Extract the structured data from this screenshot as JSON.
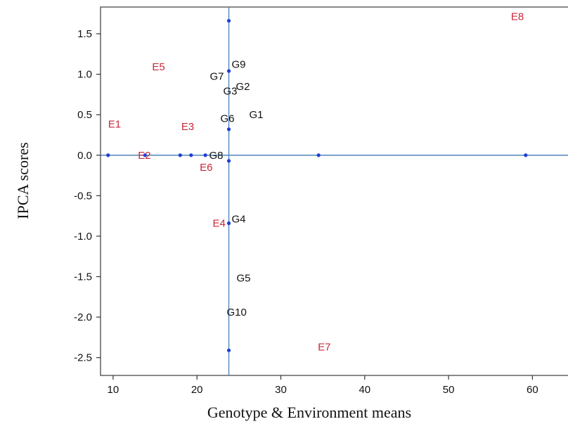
{
  "chart_data": {
    "type": "scatter",
    "title": "",
    "xlabel": "Genotype & Environment means",
    "ylabel": "IPCA scores",
    "xlim": [
      8.5,
      65.5
    ],
    "ylim": [
      -2.72,
      1.83
    ],
    "x_ticks": [
      10,
      20,
      30,
      40,
      50,
      60
    ],
    "y_ticks": [
      -2.5,
      -2.0,
      -1.5,
      -1.0,
      -0.5,
      0.0,
      0.5,
      1.0,
      1.5
    ],
    "x_tick_labels": [
      "10",
      "20",
      "30",
      "40",
      "50",
      "60"
    ],
    "y_tick_labels": [
      "-2.5",
      "-2.0",
      "-1.5",
      "-1.0",
      "-0.5",
      "0.0",
      "0.5",
      "1.0",
      "1.5"
    ],
    "reference_lines": {
      "x": 23.8,
      "y": 0.0
    },
    "grid": false,
    "legend": "none",
    "colors": {
      "genotype_label": "#111111",
      "environment_label": "#c8283a",
      "point": "#1f3fd6",
      "reference_line": "#4f86b9"
    },
    "environments": [
      {
        "name": "E1",
        "x": 9.4,
        "y": 0.34
      },
      {
        "name": "E2",
        "x": 13.8,
        "y": 0.0
      },
      {
        "name": "E3",
        "x": 19.3,
        "y": 0.31
      },
      {
        "name": "E4",
        "x": 23.8,
        "y": -0.84
      },
      {
        "name": "E5",
        "x": 18.0,
        "y": 1.05
      },
      {
        "name": "E6",
        "x": 21.0,
        "y": -0.07
      },
      {
        "name": "E7",
        "x": 34.5,
        "y": -2.41
      },
      {
        "name": "E8",
        "x": 59.2,
        "y": 1.67
      }
    ],
    "genotypes": [
      {
        "name": "G1",
        "x": 23.8,
        "y": 0.46
      },
      {
        "name": "G2",
        "x": 23.8,
        "y": 0.78
      },
      {
        "name": "G3",
        "x": 23.8,
        "y": 0.75
      },
      {
        "name": "G4",
        "x": 23.8,
        "y": -0.83
      },
      {
        "name": "G5",
        "x": 23.8,
        "y": -1.56
      },
      {
        "name": "G6",
        "x": 23.8,
        "y": 0.41
      },
      {
        "name": "G7",
        "x": 23.8,
        "y": 0.93
      },
      {
        "name": "G8",
        "x": 23.8,
        "y": 0.0
      },
      {
        "name": "G9",
        "x": 23.8,
        "y": 1.08
      },
      {
        "name": "G10",
        "x": 23.8,
        "y": -1.98
      }
    ],
    "points": [
      {
        "x": 9.4,
        "y": 0.0
      },
      {
        "x": 13.8,
        "y": 0.0
      },
      {
        "x": 18.0,
        "y": 0.0
      },
      {
        "x": 19.3,
        "y": 0.0
      },
      {
        "x": 21.0,
        "y": 0.0
      },
      {
        "x": 34.5,
        "y": 0.0
      },
      {
        "x": 59.2,
        "y": 0.0
      },
      {
        "x": 23.8,
        "y": 1.66
      },
      {
        "x": 23.8,
        "y": 1.04
      },
      {
        "x": 23.8,
        "y": 0.32
      },
      {
        "x": 23.8,
        "y": -0.07
      },
      {
        "x": 23.8,
        "y": -0.84
      },
      {
        "x": 23.8,
        "y": -2.41
      }
    ]
  }
}
